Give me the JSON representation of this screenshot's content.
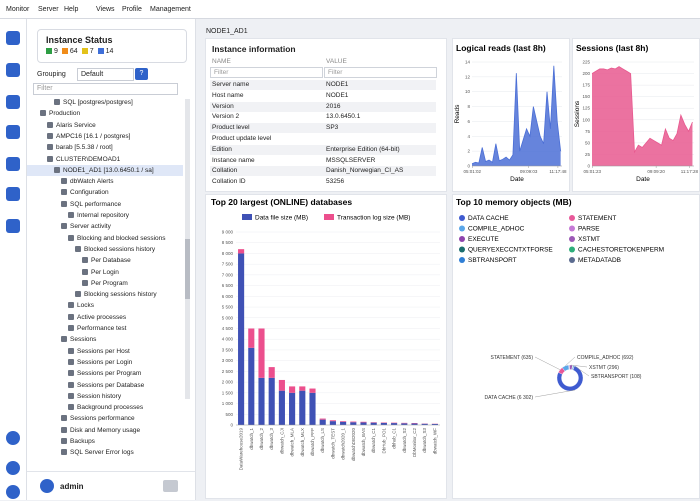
{
  "menu": [
    "Monitor",
    "Server",
    "Help",
    "Views",
    "Profile",
    "Management"
  ],
  "sidebar": {
    "status": {
      "title": "Instance Status",
      "counts": [
        {
          "value": 9,
          "color": "#2e9e44"
        },
        {
          "value": 64,
          "color": "#f08c1a"
        },
        {
          "value": 7,
          "color": "#e3c21b"
        },
        {
          "value": 14,
          "color": "#3f6fd8"
        }
      ]
    },
    "grouping_label": "Grouping",
    "grouping_value": "Default",
    "help_button": "?",
    "filter": "Filter",
    "tree": [
      {
        "label": "SQL [postgres/postgres]",
        "depth": 3
      },
      {
        "label": "Production",
        "depth": 1
      },
      {
        "label": "Alaris Service",
        "depth": 2
      },
      {
        "label": "AMPC16 [16.1 / postgres]",
        "depth": 2
      },
      {
        "label": "barab [5.5.38 / root]",
        "depth": 2
      },
      {
        "label": "CLUSTER\\DEMOAD1",
        "depth": 2
      },
      {
        "label": "NODE1_AD1 [13.0.6450.1 / sa]",
        "depth": 3,
        "selected": true
      },
      {
        "label": "dbWatch Alerts",
        "depth": 4
      },
      {
        "label": "Configuration",
        "depth": 4
      },
      {
        "label": "SQL performance",
        "depth": 4
      },
      {
        "label": "Internal repository",
        "depth": 5
      },
      {
        "label": "Server activity",
        "depth": 4
      },
      {
        "label": "Blocking and blocked sessions",
        "depth": 5
      },
      {
        "label": "Blocked sessions history",
        "depth": 6
      },
      {
        "label": "Per Database",
        "depth": 7
      },
      {
        "label": "Per Login",
        "depth": 7
      },
      {
        "label": "Per Program",
        "depth": 7
      },
      {
        "label": "Blocking sessions history",
        "depth": 6
      },
      {
        "label": "Locks",
        "depth": 5
      },
      {
        "label": "Active processes",
        "depth": 5
      },
      {
        "label": "Performance test",
        "depth": 5
      },
      {
        "label": "Sessions",
        "depth": 4
      },
      {
        "label": "Sessions per Host",
        "depth": 5
      },
      {
        "label": "Sessions per Login",
        "depth": 5
      },
      {
        "label": "Sessions per Program",
        "depth": 5
      },
      {
        "label": "Sessions per Database",
        "depth": 5
      },
      {
        "label": "Session history",
        "depth": 5
      },
      {
        "label": "Background processes",
        "depth": 5
      },
      {
        "label": "Sessions performance",
        "depth": 4
      },
      {
        "label": "Disk and Memory usage",
        "depth": 4
      },
      {
        "label": "Backups",
        "depth": 4
      },
      {
        "label": "SQL Server Error logs",
        "depth": 4
      }
    ],
    "user": "admin"
  },
  "breadcrumb": "NODE1_AD1",
  "instance_info": {
    "title": "Instance information",
    "columns": [
      "NAME",
      "VALUE"
    ],
    "filter": "Filter",
    "rows": [
      [
        "Server name",
        "NODE1"
      ],
      [
        "Host name",
        "NODE1"
      ],
      [
        "Version",
        "2016"
      ],
      [
        "Version 2",
        "13.0.6450.1"
      ],
      [
        "Product level",
        "SP3"
      ],
      [
        "Product update level"
      ],
      [
        "Edition",
        "Enterprise Edition (64-bit)"
      ],
      [
        "Instance name",
        "MSSQLSERVER"
      ],
      [
        "Collation",
        "Danish_Norwegian_CI_AS"
      ],
      [
        "Collation ID",
        "53256"
      ]
    ]
  },
  "charts": {
    "logical_reads": {
      "type": "area",
      "title": "Logical reads (last 8h)",
      "xlabel": "Date",
      "ylabel": "Reads",
      "color": "#4b6fd6",
      "x": [
        5,
        5.25,
        5.5,
        5.75,
        6,
        6.25,
        6.5,
        6.75,
        7,
        7.25,
        7.5,
        7.75,
        8,
        8.25,
        8.5,
        8.75,
        9,
        9.25,
        9.5,
        9.75,
        10,
        10.25,
        10.5,
        10.75,
        11,
        11.25,
        11.5
      ],
      "values": [
        0.3,
        0.5,
        0.4,
        2.5,
        0.6,
        0.8,
        0.5,
        3,
        0.7,
        0.9,
        1.2,
        0.8,
        1.5,
        12.5,
        2,
        3.5,
        5,
        4,
        8,
        6,
        4,
        3,
        10,
        5,
        13.5,
        6,
        2
      ],
      "xlim": [
        5,
        11.6
      ],
      "xticks": [
        {
          "value": 5.02,
          "label": "05:01:02"
        },
        {
          "value": 9.15,
          "label": "09:09:03"
        },
        {
          "value": 11.3,
          "label": "11:17:48"
        }
      ],
      "ylim": [
        0,
        14
      ],
      "yticks": [
        0,
        2,
        4,
        6,
        8,
        10,
        12,
        14
      ],
      "grid": true
    },
    "sessions": {
      "type": "area",
      "title": "Sessions (last 8h)",
      "xlabel": "Date",
      "ylabel": "Sessions",
      "color": "#e8598f",
      "x": [
        5,
        5.25,
        5.5,
        5.75,
        6,
        6.25,
        6.5,
        6.75,
        7,
        7.25,
        7.5,
        7.75,
        8,
        8.25,
        8.5,
        8.75,
        9,
        9.25,
        9.5,
        9.75,
        10,
        10.25,
        10.5,
        10.75,
        11,
        11.25,
        11.5
      ],
      "values": [
        200,
        205,
        210,
        210,
        208,
        212,
        210,
        215,
        210,
        205,
        200,
        30,
        45,
        40,
        50,
        60,
        55,
        50,
        45,
        80,
        60,
        55,
        70,
        110,
        90,
        75,
        95
      ],
      "xlim": [
        5,
        11.6
      ],
      "xticks": [
        {
          "value": 5.02,
          "label": "05:01:23"
        },
        {
          "value": 9.15,
          "label": "09:09:20"
        },
        {
          "value": 11.3,
          "label": "11:17:28"
        }
      ],
      "ylim": [
        0,
        225
      ],
      "yticks": [
        0,
        25,
        50,
        75,
        100,
        125,
        150,
        175,
        200,
        225
      ],
      "grid": true
    },
    "top_databases": {
      "type": "bar",
      "stacked": true,
      "title": "Top 20 largest (ONLINE) databases",
      "categories": [
        "DataWarehouse2019",
        "dbwatch_1",
        "dbwatch_2",
        "dbwatch_3",
        "dbwatch_CJI",
        "dbwatch_MLA",
        "dbwatch_MLX",
        "dbwatch_PFP",
        "dbwatch_LS",
        "dbwatch_TEST",
        "dbwatch2020_1",
        "dbwatchDB2020",
        "dbwatch_BAS",
        "dbwatch_C1",
        "DbHub_PO1",
        "dbhub_C1",
        "dbwatch_S2",
        "DbMonitor_C2",
        "dbwatch_S3",
        "dbwatch_WF"
      ],
      "series": [
        {
          "name": "Data file size (MB)",
          "color": "#3f51b5",
          "values": [
            8000,
            3600,
            2200,
            2200,
            1600,
            1500,
            1600,
            1500,
            250,
            180,
            150,
            130,
            120,
            110,
            100,
            90,
            80,
            70,
            60,
            50
          ]
        },
        {
          "name": "Transaction log size (MB)",
          "color": "#ec4f8d",
          "values": [
            200,
            900,
            2300,
            500,
            500,
            300,
            200,
            200,
            50,
            40,
            30,
            30,
            30,
            20,
            20,
            20,
            20,
            20,
            10,
            10
          ]
        }
      ],
      "ylim": [
        0,
        9000
      ],
      "yticks": [
        0,
        500,
        {
          "value": 1000,
          "label": "1 000"
        },
        {
          "value": 1500,
          "label": "1 500"
        },
        {
          "value": 2000,
          "label": "2 000"
        },
        {
          "value": 2500,
          "label": "2 500"
        },
        {
          "value": 3000,
          "label": "3 000"
        },
        {
          "value": 3500,
          "label": "3 500"
        },
        {
          "value": 4000,
          "label": "4 000"
        },
        {
          "value": 4500,
          "label": "4 500"
        },
        {
          "value": 5000,
          "label": "5 000"
        },
        {
          "value": 5500,
          "label": "5 500"
        },
        {
          "value": 6000,
          "label": "6 000"
        },
        {
          "value": 6500,
          "label": "6 500"
        },
        {
          "value": 7000,
          "label": "7 000"
        },
        {
          "value": 7500,
          "label": "7 500"
        },
        {
          "value": 8000,
          "label": "8 000"
        },
        {
          "value": 8500,
          "label": "8 500"
        },
        {
          "value": 9000,
          "label": "9 000"
        }
      ],
      "grid": true
    },
    "memory_objects": {
      "type": "pie",
      "donut": true,
      "title": "Top 10 memory objects (MB)",
      "categories": [
        "DATA CACHE",
        "STATEMENT",
        "COMPILE_ADHOC",
        "PARSE",
        "EXECUTE",
        "XSTMT",
        "QUERYEXECCNTXTFORSE",
        "CACHESTORETOKENPERM",
        "SBTRANSPORT",
        "METADATADB"
      ],
      "colors": [
        "#3f5bd0",
        "#e8599a",
        "#5aa6e8",
        "#c57ad6",
        "#8e44ad",
        "#9b59b6",
        "#1b6e6e",
        "#2eae7a",
        "#2f7fd6",
        "#5b6b8f"
      ],
      "values": [
        6302,
        635,
        692,
        45,
        60,
        296,
        40,
        30,
        108,
        20
      ],
      "value_labels": [
        "DATA CACHE (6 302)",
        "STATEMENT (635)",
        "COMPILE_ADHOC (692)",
        null,
        null,
        "XSTMT (296)",
        null,
        null,
        "SBTRANSPORT (108)",
        null
      ]
    }
  }
}
